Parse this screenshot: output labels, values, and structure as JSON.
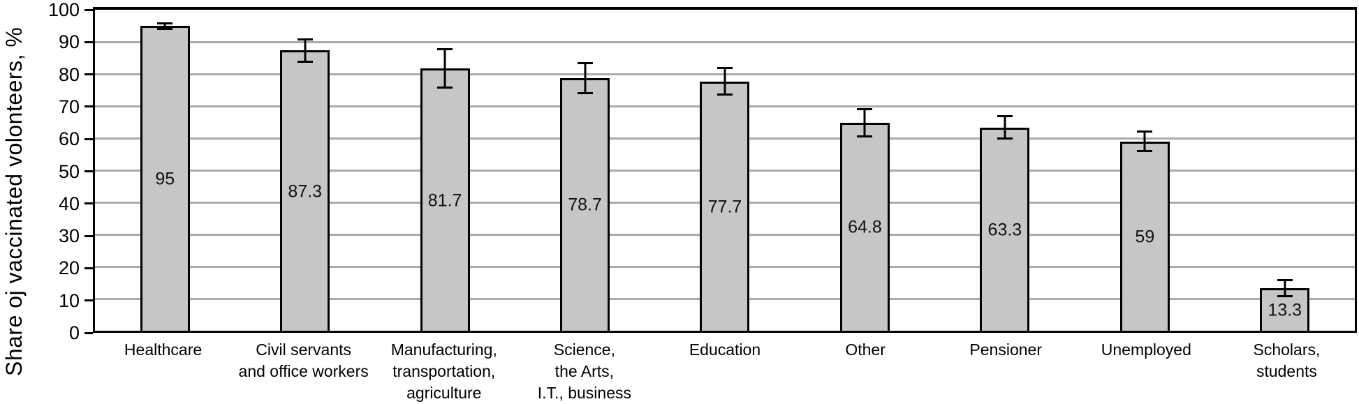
{
  "chart_data": {
    "type": "bar",
    "title": "",
    "xlabel": "",
    "ylabel": "Share oj vaccinated volonteers, %",
    "ylim": [
      0,
      100
    ],
    "yticks": [
      0,
      10,
      20,
      30,
      40,
      50,
      60,
      70,
      80,
      90,
      100
    ],
    "grid": "horizontal gray lines at each 10",
    "legend_position": "none",
    "bar_fill_color": "#c6c6c6",
    "bar_border_color": "#000000",
    "gridline_color": "#ababab",
    "frame_color": "#000000",
    "categories": [
      "Healthcare",
      "Civil servants and office workers",
      "Manufacturing, transportation, agriculture",
      "Science, the Arts, I.T., business",
      "Education",
      "Other",
      "Pensioner",
      "Unemployed",
      "Scholars, students"
    ],
    "category_lines": [
      [
        "Healthcare"
      ],
      [
        "Civil servants",
        "and office workers"
      ],
      [
        "Manufacturing,",
        "transportation,",
        "agriculture"
      ],
      [
        "Science,",
        "the Arts,",
        "I.T., business"
      ],
      [
        "Education"
      ],
      [
        "Other"
      ],
      [
        "Pensioner"
      ],
      [
        "Unemployed"
      ],
      [
        "Scholars,",
        "students"
      ]
    ],
    "category_slugs": [
      "healthcare",
      "civil-servants",
      "manufacturing",
      "science-arts",
      "education",
      "other",
      "pensioner",
      "unemployed",
      "scholars-students"
    ],
    "values": [
      95,
      87.3,
      81.7,
      78.7,
      77.7,
      64.8,
      63.3,
      59,
      13.3
    ],
    "value_labels": [
      "95",
      "87.3",
      "81.7",
      "78.7",
      "77.7",
      "64.8",
      "63.3",
      "59",
      "13.3"
    ],
    "error_bars_plus_minus": [
      1.2,
      3.8,
      6.3,
      4.9,
      4.5,
      4.5,
      3.8,
      3.4,
      2.9
    ]
  }
}
